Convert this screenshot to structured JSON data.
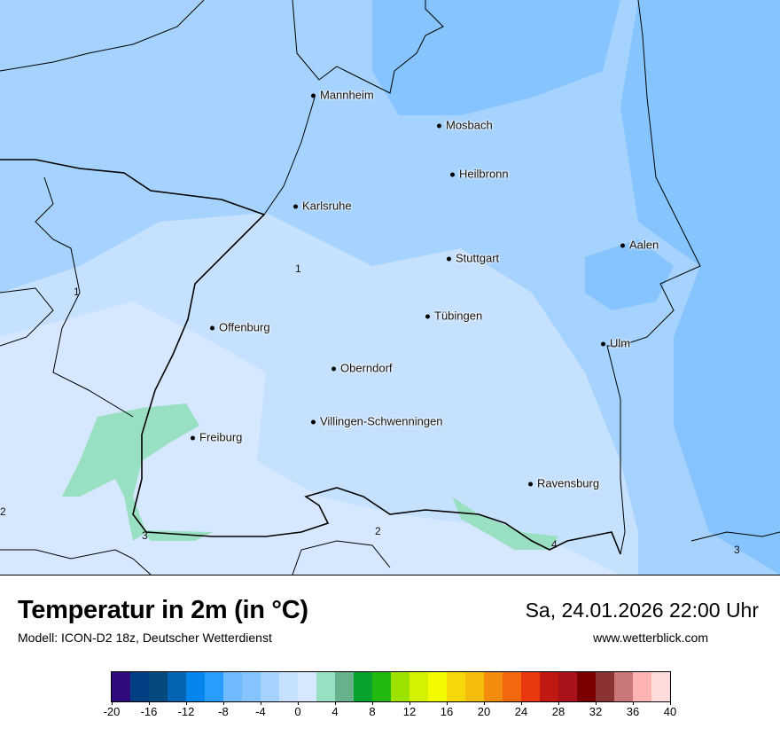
{
  "map": {
    "cities": [
      {
        "name": "Mannheim"
      },
      {
        "name": "Mosbach"
      },
      {
        "name": "Heilbronn"
      },
      {
        "name": "Karlsruhe"
      },
      {
        "name": "Aalen"
      },
      {
        "name": "Stuttgart"
      },
      {
        "name": "Tübingen"
      },
      {
        "name": "Offenburg"
      },
      {
        "name": "Ulm"
      },
      {
        "name": "Oberndorf"
      },
      {
        "name": "Villingen-Schwenningen"
      },
      {
        "name": "Freiburg"
      },
      {
        "name": "Ravensburg"
      }
    ],
    "contour_labels": [
      "1",
      "1",
      "2",
      "2",
      "3",
      "3",
      "4"
    ]
  },
  "header": {
    "title": "Temperatur in 2m (in °C)",
    "subtitle": "Modell: ICON-D2 18z, Deutscher Wetterdienst",
    "datetime": "Sa, 24.01.2026 22:00 Uhr",
    "site": "www.wetterblick.com"
  },
  "colorbar": {
    "colors": [
      "#2e0a7a",
      "#023e82",
      "#044a7e",
      "#0364b4",
      "#0586ef",
      "#2a9cfd",
      "#6fbaff",
      "#85c4ff",
      "#a6d2fe",
      "#c6e1fe",
      "#d6e8ff",
      "#99dfc2",
      "#66b28d",
      "#08a22e",
      "#22b910",
      "#9ee200",
      "#d3f100",
      "#f2fb00",
      "#f5d808",
      "#f4bd0b",
      "#f38c0e",
      "#f2690d",
      "#e8380c",
      "#c01914",
      "#a81218",
      "#7a0000",
      "#8a3234",
      "#c87677",
      "#ffb3b3",
      "#ffdcdc"
    ],
    "ticks": [
      "-20",
      "-16",
      "-12",
      "-8",
      "-4",
      "0",
      "4",
      "8",
      "12",
      "16",
      "20",
      "24",
      "28",
      "32",
      "36",
      "40"
    ]
  }
}
